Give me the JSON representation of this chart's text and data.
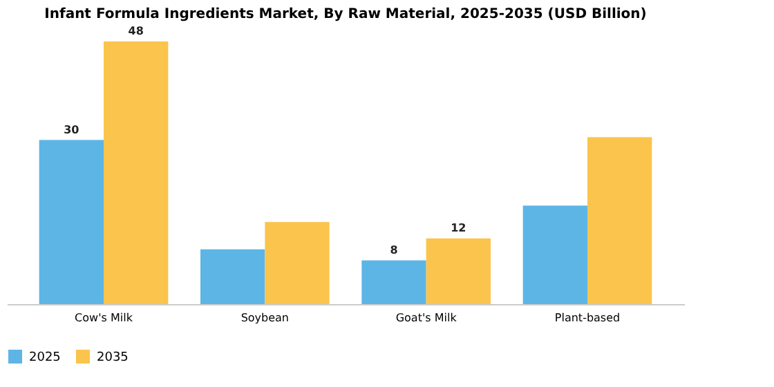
{
  "chart_data": {
    "type": "bar",
    "title": "Infant Formula Ingredients Market, By Raw Material, 2025-2035 (USD Billion)",
    "categories": [
      "Cow's Milk",
      "Soybean",
      "Goat's Milk",
      "Plant-based"
    ],
    "series": [
      {
        "name": "2025",
        "color": "#5db5e6",
        "values": [
          30,
          10,
          8,
          18
        ],
        "value_labels": [
          "30",
          null,
          "8",
          null
        ]
      },
      {
        "name": "2035",
        "color": "#fbc44c",
        "values": [
          48,
          15,
          12,
          30.5
        ],
        "value_labels": [
          "48",
          null,
          "12",
          null
        ]
      }
    ],
    "legend": "bottom",
    "grid": false
  }
}
